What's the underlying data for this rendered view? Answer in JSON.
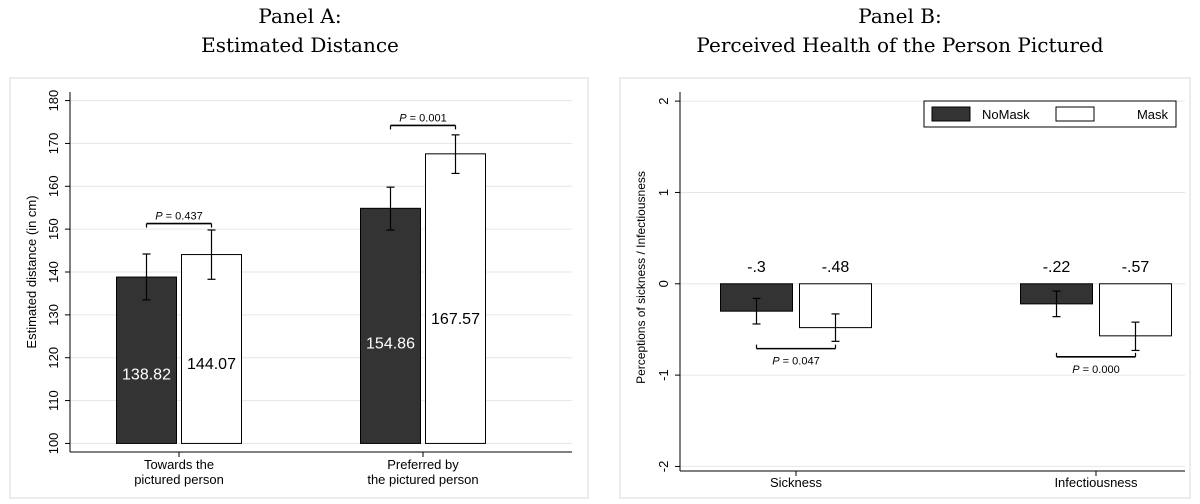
{
  "chart_data": [
    {
      "type": "bar",
      "panel_label": "Panel A:",
      "title": "Estimated Distance",
      "ylabel": "Estimated distance (in cm)",
      "xlabel": "",
      "ylim": [
        98,
        182
      ],
      "yticks": [
        100,
        110,
        120,
        130,
        140,
        150,
        160,
        170,
        180
      ],
      "ytick_labels": [
        "100",
        "110",
        "120",
        "130",
        "140",
        "150",
        "160",
        "170",
        "180"
      ],
      "grid": true,
      "categories": [
        {
          "line1": "Towards the",
          "line2": "pictured person"
        },
        {
          "line1": "Preferred by",
          "line2": "the pictured person"
        }
      ],
      "series": [
        {
          "name": "NoMask",
          "color": "#333333",
          "values": [
            138.82,
            154.86
          ],
          "labels": [
            "138.82",
            "154.86"
          ],
          "ci_low": [
            133.5,
            149.8
          ],
          "ci_high": [
            144.2,
            159.8
          ]
        },
        {
          "name": "Mask",
          "color": "#ffffff",
          "values": [
            144.07,
            167.57
          ],
          "labels": [
            "144.07",
            "167.57"
          ],
          "ci_low": [
            138.3,
            163.0
          ],
          "ci_high": [
            149.8,
            172.0
          ]
        }
      ],
      "annotations": [
        {
          "text_prefix": "P",
          "text_value": " = 0.437",
          "category": 0,
          "y": 151.3
        },
        {
          "text_prefix": "P",
          "text_value": " = 0.001",
          "category": 1,
          "y": 174.2
        }
      ]
    },
    {
      "type": "bar",
      "panel_label": "Panel B:",
      "title": "Perceived Health of the Person Pictured",
      "ylabel": "Perceptions of sickness / Infectiousness",
      "xlabel": "",
      "ylim": [
        -2.05,
        2.1
      ],
      "yticks": [
        -2,
        -1,
        0,
        1,
        2
      ],
      "ytick_labels": [
        "-2",
        "-1",
        "0",
        "1",
        "2"
      ],
      "grid": true,
      "legend": {
        "placement": "top-right"
      },
      "categories": [
        "Sickness",
        "Infectiousness"
      ],
      "series": [
        {
          "name": "NoMask",
          "color": "#333333",
          "values": [
            -0.3,
            -0.22
          ],
          "labels": [
            "-.3",
            "-.22"
          ],
          "ci_low": [
            -0.44,
            -0.36
          ],
          "ci_high": [
            -0.16,
            -0.08
          ]
        },
        {
          "name": "Mask",
          "color": "#ffffff",
          "values": [
            -0.48,
            -0.57
          ],
          "labels": [
            "-.48",
            "-.57"
          ],
          "ci_low": [
            -0.63,
            -0.73
          ],
          "ci_high": [
            -0.33,
            -0.42
          ]
        }
      ],
      "annotations": [
        {
          "text_prefix": "P",
          "text_value": " = 0.047",
          "category": 0,
          "y": -0.71
        },
        {
          "text_prefix": "P",
          "text_value": " = 0.000",
          "category": 1,
          "y": -0.8
        }
      ]
    }
  ]
}
